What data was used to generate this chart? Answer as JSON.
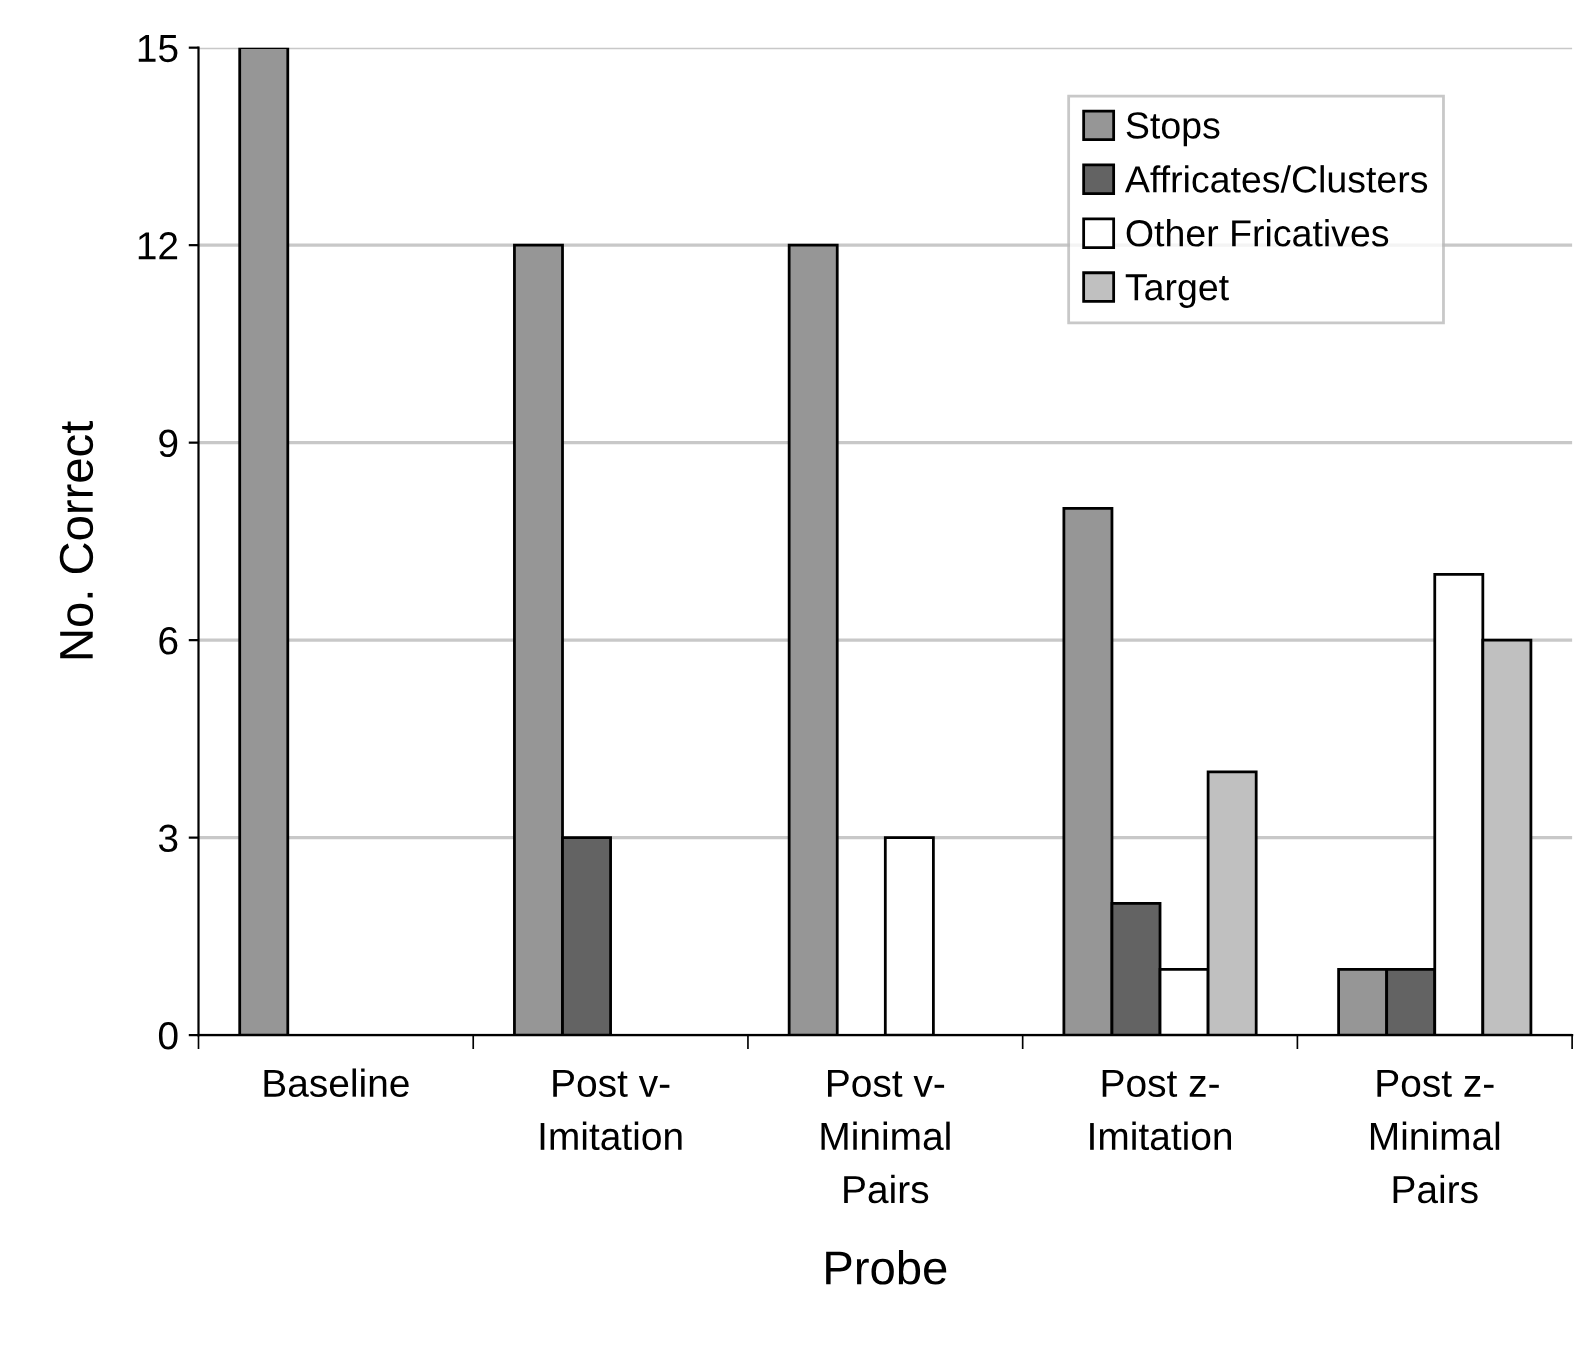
{
  "chart_data": {
    "type": "bar",
    "xlabel": "Probe",
    "ylabel": "No. Correct",
    "categories": [
      "Baseline",
      "Post v-\nImitation",
      "Post v-\nMinimal\nPairs",
      "Post z-\nImitation",
      "Post z-\nMinimal\nPairs"
    ],
    "series": [
      {
        "name": "Stops",
        "color": "#969696",
        "values": [
          15,
          12,
          12,
          8,
          1
        ]
      },
      {
        "name": "Affricates/Clusters",
        "color": "#636363",
        "values": [
          0,
          3,
          0,
          2,
          1
        ]
      },
      {
        "name": "Other Fricatives",
        "color": "#ffffff",
        "values": [
          0,
          0,
          3,
          1,
          7
        ]
      },
      {
        "name": "Target",
        "color": "#c0c0c0",
        "values": [
          0,
          0,
          0,
          4,
          6
        ]
      }
    ],
    "ylim": [
      0,
      15
    ],
    "yticks": [
      0,
      3,
      6,
      9,
      12,
      15
    ],
    "grid": "y",
    "legend": "top right"
  }
}
